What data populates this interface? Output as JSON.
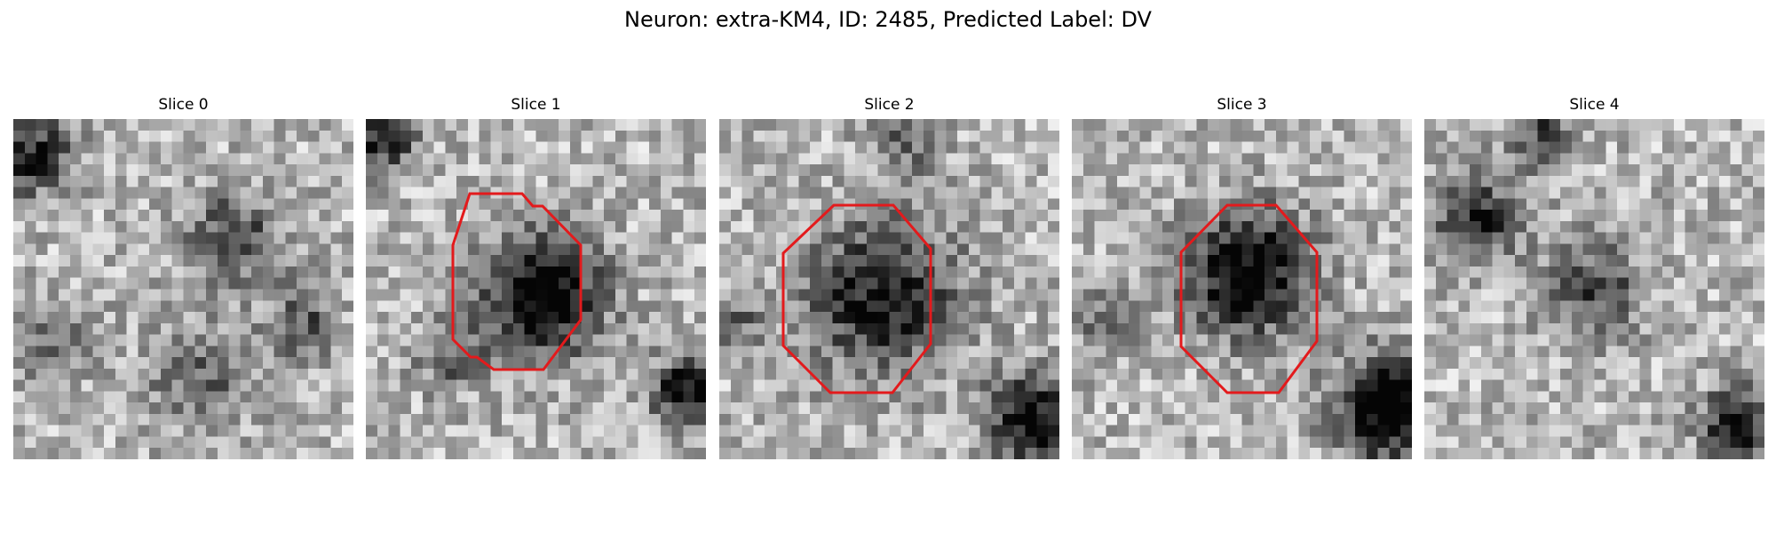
{
  "figure": {
    "title": "Neuron: extra-KM4, ID: 2485, Predicted Label: DV"
  },
  "panels": [
    {
      "title": "Slice 0",
      "seed": 11,
      "has_roi": false,
      "dark_blobs": [
        [
          0.05,
          0.1,
          0.12,
          0.6
        ],
        [
          0.65,
          0.35,
          0.14,
          0.45
        ],
        [
          0.12,
          0.65,
          0.12,
          0.35
        ],
        [
          0.55,
          0.75,
          0.15,
          0.35
        ],
        [
          0.85,
          0.6,
          0.1,
          0.4
        ]
      ]
    },
    {
      "title": "Slice 1",
      "seed": 23,
      "has_roi": true,
      "dark_blobs": [
        [
          0.52,
          0.52,
          0.17,
          0.85
        ],
        [
          0.05,
          0.05,
          0.1,
          0.6
        ],
        [
          0.95,
          0.8,
          0.1,
          0.75
        ],
        [
          0.25,
          0.7,
          0.1,
          0.35
        ]
      ]
    },
    {
      "title": "Slice 2",
      "seed": 37,
      "has_roi": true,
      "dark_blobs": [
        [
          0.48,
          0.52,
          0.22,
          0.65
        ],
        [
          0.92,
          0.88,
          0.13,
          0.75
        ],
        [
          0.04,
          0.6,
          0.08,
          0.35
        ],
        [
          0.55,
          0.05,
          0.1,
          0.35
        ]
      ]
    },
    {
      "title": "Slice 3",
      "seed": 53,
      "has_roi": true,
      "dark_blobs": [
        [
          0.52,
          0.45,
          0.18,
          0.8
        ],
        [
          0.93,
          0.85,
          0.15,
          0.85
        ],
        [
          0.1,
          0.6,
          0.1,
          0.3
        ]
      ]
    },
    {
      "title": "Slice 4",
      "seed": 71,
      "has_roi": false,
      "dark_blobs": [
        [
          0.15,
          0.3,
          0.12,
          0.6
        ],
        [
          0.5,
          0.5,
          0.14,
          0.45
        ],
        [
          0.92,
          0.9,
          0.1,
          0.75
        ],
        [
          0.35,
          0.05,
          0.1,
          0.45
        ]
      ]
    }
  ],
  "colors": {
    "roi": "#e31a1c"
  }
}
